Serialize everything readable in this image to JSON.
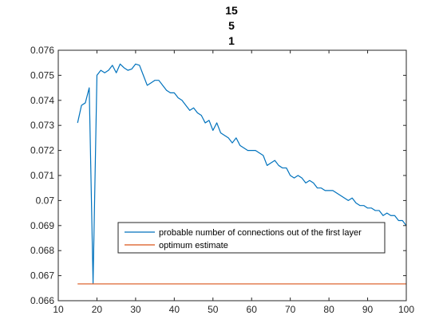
{
  "chart_data": {
    "type": "line",
    "title_lines": [
      "15",
      "5",
      "1"
    ],
    "xlabel": "",
    "ylabel": "",
    "xlim": [
      10,
      100
    ],
    "ylim": [
      0.066,
      0.076
    ],
    "x_ticks": [
      10,
      20,
      30,
      40,
      50,
      60,
      70,
      80,
      90,
      100
    ],
    "x_tick_labels": [
      "10",
      "20",
      "30",
      "40",
      "50",
      "60",
      "70",
      "80",
      "90",
      "100"
    ],
    "y_ticks": [
      0.066,
      0.067,
      0.068,
      0.069,
      0.07,
      0.071,
      0.072,
      0.073,
      0.074,
      0.075,
      0.076
    ],
    "y_tick_labels": [
      "0.066",
      "0.067",
      "0.068",
      "0.069",
      "0.07",
      "0.071",
      "0.072",
      "0.073",
      "0.074",
      "0.075",
      "0.076"
    ],
    "grid": false,
    "legend_position": "lower-center",
    "series": [
      {
        "name": "probable number of connections out of the first layer",
        "color": "#0072BD",
        "x": [
          15,
          16,
          17,
          18,
          19,
          20,
          21,
          22,
          23,
          24,
          25,
          26,
          27,
          28,
          29,
          30,
          31,
          32,
          33,
          34,
          35,
          36,
          37,
          38,
          39,
          40,
          41,
          42,
          43,
          44,
          45,
          46,
          47,
          48,
          49,
          50,
          51,
          52,
          53,
          54,
          55,
          56,
          57,
          58,
          59,
          60,
          61,
          62,
          63,
          64,
          65,
          66,
          67,
          68,
          69,
          70,
          71,
          72,
          73,
          74,
          75,
          76,
          77,
          78,
          79,
          80,
          81,
          82,
          83,
          84,
          85,
          86,
          87,
          88,
          89,
          90,
          91,
          92,
          93,
          94,
          95,
          96,
          97,
          98,
          99,
          100
        ],
        "y": [
          0.0731,
          0.0738,
          0.0739,
          0.0745,
          0.0667,
          0.075,
          0.0752,
          0.0751,
          0.0752,
          0.0754,
          0.0751,
          0.07545,
          0.0753,
          0.0752,
          0.07525,
          0.07545,
          0.0754,
          0.075,
          0.0746,
          0.0747,
          0.0748,
          0.0748,
          0.0746,
          0.0744,
          0.0743,
          0.0743,
          0.0741,
          0.074,
          0.0738,
          0.0736,
          0.0737,
          0.0735,
          0.0734,
          0.0731,
          0.0732,
          0.0728,
          0.0731,
          0.0727,
          0.0726,
          0.0725,
          0.0723,
          0.0725,
          0.0722,
          0.0721,
          0.072,
          0.072,
          0.072,
          0.0719,
          0.0718,
          0.0714,
          0.0715,
          0.0716,
          0.0714,
          0.0713,
          0.0713,
          0.071,
          0.0709,
          0.071,
          0.0709,
          0.0707,
          0.0708,
          0.0707,
          0.0705,
          0.0705,
          0.0704,
          0.0704,
          0.0704,
          0.0703,
          0.0702,
          0.0701,
          0.07,
          0.0701,
          0.0699,
          0.0698,
          0.0698,
          0.0697,
          0.0697,
          0.0696,
          0.0696,
          0.0694,
          0.0695,
          0.0694,
          0.0694,
          0.0692,
          0.0692,
          0.069
        ]
      },
      {
        "name": "optimum estimate",
        "color": "#D95319",
        "x": [
          15,
          100
        ],
        "y": [
          0.06667,
          0.06667
        ]
      }
    ]
  }
}
